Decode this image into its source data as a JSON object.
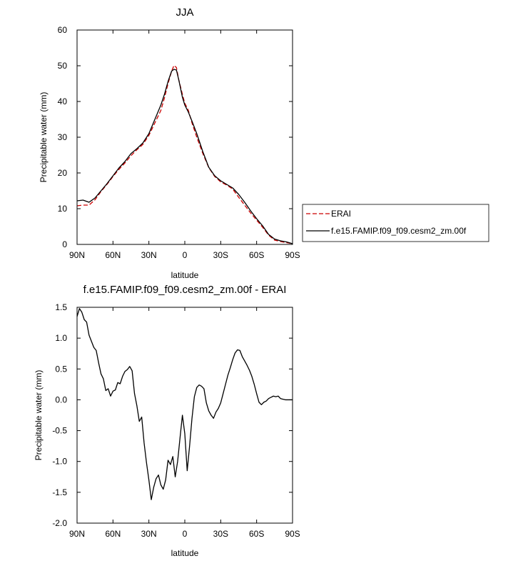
{
  "chart_data": [
    {
      "type": "line",
      "title": "JJA",
      "xlabel": "latitude",
      "ylabel": "Precipitable water (mm)",
      "xlim": [
        90,
        -90
      ],
      "ylim": [
        0,
        60
      ],
      "xticks": [
        {
          "value": 90,
          "label": "90N"
        },
        {
          "value": 60,
          "label": "60N"
        },
        {
          "value": 30,
          "label": "30N"
        },
        {
          "value": 0,
          "label": "0"
        },
        {
          "value": -30,
          "label": "30S"
        },
        {
          "value": -60,
          "label": "60S"
        },
        {
          "value": -90,
          "label": "90S"
        }
      ],
      "yticks": [
        0,
        10,
        20,
        30,
        40,
        50,
        60
      ],
      "legend": "outside-right",
      "series": [
        {
          "name": "ERAI",
          "color": "#cc0000",
          "dash": "dashed",
          "x": [
            90,
            85,
            80,
            75,
            70,
            65,
            60,
            55,
            50,
            45,
            40,
            35,
            30,
            25,
            20,
            17,
            14,
            11,
            9,
            7,
            5,
            2,
            0,
            -3,
            -6,
            -10,
            -15,
            -20,
            -25,
            -30,
            -35,
            -40,
            -45,
            -50,
            -55,
            -60,
            -65,
            -70,
            -75,
            -80,
            -85,
            -90
          ],
          "y": [
            10.8,
            11.0,
            11.0,
            12.5,
            14.8,
            16.8,
            19.0,
            21.0,
            22.8,
            24.8,
            26.5,
            28.0,
            30.5,
            34.0,
            37.5,
            41.0,
            45.0,
            48.5,
            50.1,
            49.5,
            46.0,
            42.0,
            39.5,
            37.5,
            34.0,
            30.0,
            25.5,
            21.5,
            19.0,
            17.5,
            16.6,
            15.5,
            13.2,
            11.0,
            8.8,
            6.8,
            4.8,
            2.6,
            1.2,
            0.8,
            0.5,
            0.2
          ]
        },
        {
          "name": "f.e15.FAMIP.f09_f09.cesm2_zm.00f",
          "color": "#000000",
          "dash": "solid",
          "x": [
            90,
            85,
            80,
            75,
            70,
            65,
            60,
            55,
            50,
            45,
            40,
            35,
            30,
            25,
            20,
            17,
            14,
            11,
            9,
            7,
            5,
            2,
            0,
            -3,
            -6,
            -10,
            -15,
            -20,
            -25,
            -30,
            -35,
            -40,
            -45,
            -50,
            -55,
            -60,
            -65,
            -70,
            -75,
            -80,
            -85,
            -90
          ],
          "y": [
            12.2,
            12.4,
            11.8,
            13.0,
            15.0,
            17.0,
            19.2,
            21.4,
            23.2,
            25.4,
            26.8,
            28.4,
            31.0,
            35.0,
            39.0,
            42.0,
            45.6,
            48.5,
            49.0,
            48.8,
            46.0,
            41.2,
            39.0,
            37.0,
            34.5,
            31.0,
            26.0,
            21.6,
            19.2,
            17.8,
            16.8,
            15.8,
            14.0,
            11.8,
            9.4,
            7.2,
            5.2,
            2.8,
            1.5,
            1.0,
            0.7,
            0.2
          ]
        }
      ]
    },
    {
      "type": "line",
      "title": "f.e15.FAMIP.f09_f09.cesm2_zm.00f - ERAI",
      "xlabel": "latitude",
      "ylabel": "Precipitable water (mm)",
      "xlim": [
        90,
        -90
      ],
      "ylim": [
        -2.0,
        1.5
      ],
      "xticks": [
        {
          "value": 90,
          "label": "90N"
        },
        {
          "value": 60,
          "label": "60N"
        },
        {
          "value": 30,
          "label": "30N"
        },
        {
          "value": 0,
          "label": "0"
        },
        {
          "value": -30,
          "label": "30S"
        },
        {
          "value": -60,
          "label": "60S"
        },
        {
          "value": -90,
          "label": "90S"
        }
      ],
      "yticks": [
        {
          "value": 1.5,
          "label": "1.5"
        },
        {
          "value": 1.0,
          "label": "1.0"
        },
        {
          "value": 0.5,
          "label": "0.5"
        },
        {
          "value": 0.0,
          "label": "0.0"
        },
        {
          "value": -0.5,
          "label": "-0.5"
        },
        {
          "value": -1.0,
          "label": "-1.0"
        },
        {
          "value": -1.5,
          "label": "-1.5"
        },
        {
          "value": -2.0,
          "label": "-2.0"
        }
      ],
      "series": [
        {
          "color": "#000000",
          "dash": "solid",
          "x": [
            90,
            88,
            86,
            84,
            82,
            80,
            78,
            76,
            74,
            72,
            70,
            68,
            66,
            64,
            62,
            60,
            58,
            56,
            54,
            52,
            50,
            48,
            46,
            44,
            42,
            40,
            38,
            36,
            34,
            32,
            30,
            28,
            26,
            24,
            22,
            20,
            18,
            16,
            14,
            12,
            10,
            8,
            6,
            4,
            2,
            0,
            -2,
            -4,
            -6,
            -8,
            -10,
            -12,
            -14,
            -16,
            -18,
            -20,
            -22,
            -24,
            -26,
            -28,
            -30,
            -32,
            -34,
            -36,
            -38,
            -40,
            -42,
            -44,
            -46,
            -48,
            -50,
            -52,
            -54,
            -56,
            -58,
            -60,
            -62,
            -64,
            -66,
            -68,
            -70,
            -72,
            -74,
            -76,
            -78,
            -80,
            -82,
            -84,
            -86,
            -88,
            -90
          ],
          "y": [
            1.35,
            1.48,
            1.42,
            1.3,
            1.26,
            1.05,
            0.95,
            0.85,
            0.8,
            0.6,
            0.42,
            0.34,
            0.15,
            0.18,
            0.06,
            0.14,
            0.16,
            0.28,
            0.26,
            0.38,
            0.46,
            0.49,
            0.54,
            0.47,
            0.1,
            -0.1,
            -0.35,
            -0.28,
            -0.7,
            -1.02,
            -1.3,
            -1.62,
            -1.42,
            -1.28,
            -1.22,
            -1.38,
            -1.45,
            -1.3,
            -0.98,
            -1.05,
            -0.92,
            -1.25,
            -1.0,
            -0.62,
            -0.25,
            -0.55,
            -1.15,
            -0.75,
            -0.3,
            0.05,
            0.2,
            0.24,
            0.22,
            0.18,
            -0.05,
            -0.18,
            -0.25,
            -0.3,
            -0.2,
            -0.14,
            -0.05,
            0.1,
            0.25,
            0.4,
            0.52,
            0.65,
            0.76,
            0.81,
            0.8,
            0.7,
            0.63,
            0.56,
            0.48,
            0.38,
            0.25,
            0.1,
            -0.04,
            -0.08,
            -0.04,
            -0.02,
            0.02,
            0.04,
            0.06,
            0.05,
            0.06,
            0.02,
            0.01,
            0.0,
            0.0,
            0.0,
            0.0
          ]
        }
      ]
    }
  ]
}
